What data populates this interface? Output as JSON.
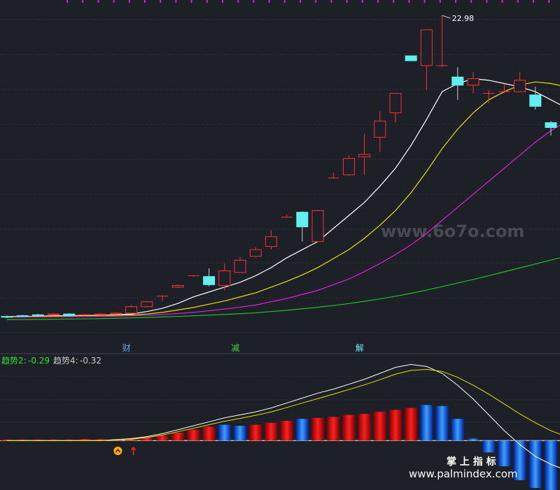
{
  "chart_data": [
    {
      "type": "candlestick",
      "panel": "main",
      "price_high_label": "22.98",
      "ylim": [
        3.5,
        23.5
      ],
      "candles": [
        {
          "o": 4.5,
          "c": 4.45,
          "h": 4.55,
          "l": 4.4
        },
        {
          "o": 4.55,
          "c": 4.5,
          "h": 4.6,
          "l": 4.45
        },
        {
          "o": 4.6,
          "c": 4.55,
          "h": 4.65,
          "l": 4.5
        },
        {
          "o": 4.6,
          "c": 4.65,
          "h": 4.7,
          "l": 4.55
        },
        {
          "o": 4.65,
          "c": 4.55,
          "h": 4.7,
          "l": 4.5
        },
        {
          "o": 4.6,
          "c": 4.6,
          "h": 4.65,
          "l": 4.55
        },
        {
          "o": 4.6,
          "c": 4.65,
          "h": 4.7,
          "l": 4.55
        },
        {
          "o": 4.65,
          "c": 4.7,
          "h": 4.75,
          "l": 4.6
        },
        {
          "o": 4.7,
          "c": 5.1,
          "h": 5.2,
          "l": 4.65
        },
        {
          "o": 5.1,
          "c": 5.4,
          "h": 5.45,
          "l": 5.05
        },
        {
          "o": 5.75,
          "c": 5.75,
          "h": 5.8,
          "l": 5.45
        },
        {
          "o": 6.3,
          "c": 6.4,
          "h": 6.45,
          "l": 6.25
        },
        {
          "o": 7.0,
          "c": 7.0,
          "h": 7.05,
          "l": 6.95
        },
        {
          "o": 6.95,
          "c": 6.45,
          "h": 7.45,
          "l": 6.35
        },
        {
          "o": 6.4,
          "c": 7.3,
          "h": 7.75,
          "l": 6.1
        },
        {
          "o": 7.2,
          "c": 7.95,
          "h": 8.15,
          "l": 7.2
        },
        {
          "o": 8.2,
          "c": 8.6,
          "h": 8.75,
          "l": 8.1
        },
        {
          "o": 8.8,
          "c": 9.4,
          "h": 9.8,
          "l": 8.6
        },
        {
          "o": 10.6,
          "c": 10.6,
          "h": 10.75,
          "l": 10.55
        },
        {
          "o": 10.9,
          "c": 10.0,
          "h": 10.95,
          "l": 9.1
        },
        {
          "o": 9.1,
          "c": 11.0,
          "h": 11.05,
          "l": 9.1
        },
        {
          "o": 13.0,
          "c": 13.0,
          "h": 13.35,
          "l": 12.95
        },
        {
          "o": 13.2,
          "c": 14.2,
          "h": 14.4,
          "l": 13.15
        },
        {
          "o": 14.3,
          "c": 14.45,
          "h": 15.7,
          "l": 13.2
        },
        {
          "o": 15.5,
          "c": 16.5,
          "h": 17.1,
          "l": 14.6
        },
        {
          "o": 17.0,
          "c": 18.2,
          "h": 18.2,
          "l": 16.4
        },
        {
          "o": 20.5,
          "c": 20.2,
          "h": 20.5,
          "l": 20.2
        },
        {
          "o": 19.9,
          "c": 22.1,
          "h": 22.1,
          "l": 18.4
        },
        {
          "o": 19.9,
          "c": 19.9,
          "h": 22.98,
          "l": 19.8
        },
        {
          "o": 19.2,
          "c": 18.7,
          "h": 19.8,
          "l": 17.8
        },
        {
          "o": 18.7,
          "c": 19.1,
          "h": 19.5,
          "l": 18.2
        },
        {
          "o": 18.2,
          "c": 18.2,
          "h": 18.4,
          "l": 17.6
        },
        {
          "o": 18.3,
          "c": 18.3,
          "h": 18.8,
          "l": 18.2
        },
        {
          "o": 18.3,
          "c": 19.0,
          "h": 19.5,
          "l": 18.3
        },
        {
          "o": 18.1,
          "c": 17.4,
          "h": 18.6,
          "l": 17.2
        },
        {
          "o": 16.4,
          "c": 16.1,
          "h": 16.5,
          "l": 15.6
        },
        {
          "o": 16.0,
          "c": 16.3,
          "h": 16.4,
          "l": 15.9
        }
      ],
      "series": [
        {
          "color": "#ffffff",
          "values": [
            4.5,
            4.5,
            4.52,
            4.54,
            4.55,
            4.56,
            4.58,
            4.6,
            4.65,
            4.8,
            5.0,
            5.3,
            5.7,
            6.0,
            6.3,
            6.6,
            7.0,
            7.5,
            8.1,
            8.6,
            9.1,
            9.9,
            10.7,
            11.5,
            12.5,
            13.6,
            15.0,
            16.6,
            18.3,
            18.8,
            19.1,
            19.0,
            18.8,
            18.6,
            18.3,
            17.8,
            17.3
          ]
        },
        {
          "color": "#e8e000",
          "values": [
            4.5,
            4.5,
            4.51,
            4.52,
            4.53,
            4.55,
            4.56,
            4.58,
            4.6,
            4.65,
            4.75,
            4.9,
            5.05,
            5.25,
            5.45,
            5.7,
            5.95,
            6.3,
            6.65,
            7.05,
            7.5,
            8.05,
            8.6,
            9.3,
            10.1,
            11.0,
            12.1,
            13.4,
            14.8,
            16.0,
            17.0,
            17.8,
            18.3,
            18.7,
            18.9,
            18.8,
            18.6
          ]
        },
        {
          "color": "#e020e0",
          "values": [
            4.45,
            4.46,
            4.47,
            4.48,
            4.49,
            4.5,
            4.51,
            4.52,
            4.54,
            4.57,
            4.62,
            4.68,
            4.75,
            4.85,
            4.95,
            5.07,
            5.2,
            5.4,
            5.6,
            5.85,
            6.1,
            6.45,
            6.8,
            7.25,
            7.75,
            8.3,
            8.9,
            9.6,
            10.4,
            11.2,
            12.0,
            12.8,
            13.6,
            14.4,
            15.2,
            15.9,
            16.5
          ]
        },
        {
          "color": "#20c020",
          "values": [
            4.3,
            4.31,
            4.32,
            4.33,
            4.34,
            4.35,
            4.37,
            4.39,
            4.41,
            4.44,
            4.47,
            4.5,
            4.54,
            4.58,
            4.62,
            4.67,
            4.72,
            4.8,
            4.88,
            4.97,
            5.06,
            5.17,
            5.29,
            5.43,
            5.58,
            5.74,
            5.92,
            6.12,
            6.33,
            6.55,
            6.77,
            7.0,
            7.24,
            7.48,
            7.72,
            7.96,
            8.2
          ]
        }
      ],
      "markers": [
        {
          "text": "财",
          "candle": 4,
          "color": "#6ea0ff"
        },
        {
          "text": "减",
          "candle": 11,
          "color": "#30e030"
        },
        {
          "text": "解",
          "candle": 19,
          "color": "#6ee0ff"
        }
      ],
      "watermark": "www.6o7o.com"
    },
    {
      "type": "bar",
      "panel": "indicator",
      "legend": [
        {
          "label": "趋势2:",
          "value": "-0.29",
          "color": "#30e030"
        },
        {
          "label": "趋势4:",
          "value": "-0.32",
          "color": "#c8c8c8"
        }
      ],
      "ylim": [
        -2.5,
        3.9
      ],
      "bars": [
        0.05,
        0.05,
        0.05,
        0.05,
        0.05,
        0.08,
        0.07,
        0.06,
        0.1,
        0.15,
        0.25,
        0.4,
        0.55,
        0.7,
        0.8,
        0.75,
        0.8,
        0.9,
        1.0,
        1.1,
        1.15,
        1.2,
        1.3,
        1.35,
        1.45,
        1.55,
        1.65,
        1.8,
        1.75,
        1.1,
        0.1,
        -0.6,
        -1.3,
        -2.0,
        -2.4,
        -2.5,
        -2.2
      ],
      "bar_colors": [
        "red",
        "red",
        "red",
        "red",
        "red",
        "red",
        "red",
        "red",
        "red",
        "red",
        "red",
        "red",
        "red",
        "red",
        "blue",
        "blue",
        "red",
        "red",
        "red",
        "blue",
        "red",
        "red",
        "red",
        "red",
        "red",
        "red",
        "red",
        "blue",
        "blue",
        "blue",
        "blue",
        "blue",
        "blue",
        "blue",
        "blue",
        "blue",
        "white"
      ],
      "series": [
        {
          "color": "#ffffff",
          "values": [
            0,
            0,
            0,
            0,
            0,
            0,
            0,
            0.05,
            0.1,
            0.2,
            0.35,
            0.55,
            0.75,
            0.95,
            1.15,
            1.3,
            1.45,
            1.65,
            1.9,
            2.15,
            2.4,
            2.6,
            2.85,
            3.1,
            3.4,
            3.7,
            3.85,
            3.75,
            3.4,
            2.8,
            2.1,
            1.3,
            0.5,
            -0.2,
            -0.8,
            -1.2,
            -1.5
          ]
        },
        {
          "color": "#e8e000",
          "values": [
            0,
            0,
            0,
            0,
            0,
            0,
            0,
            0.03,
            0.07,
            0.15,
            0.28,
            0.45,
            0.62,
            0.8,
            0.98,
            1.12,
            1.28,
            1.45,
            1.67,
            1.9,
            2.12,
            2.35,
            2.58,
            2.82,
            3.08,
            3.36,
            3.55,
            3.6,
            3.5,
            3.2,
            2.8,
            2.35,
            1.85,
            1.35,
            0.9,
            0.5,
            0.2
          ]
        }
      ],
      "signals": [
        {
          "type": "circle",
          "candle": 7,
          "color": "#ffb000"
        },
        {
          "type": "arrow-up",
          "candle": 8,
          "color": "#ff2020"
        }
      ],
      "watermark_cn": "掌 上 指 标",
      "watermark_url": "www.palmindex.com"
    }
  ]
}
